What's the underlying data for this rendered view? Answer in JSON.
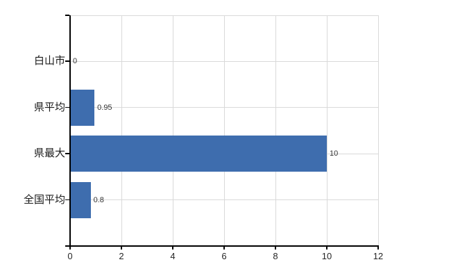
{
  "chart_data": {
    "type": "bar",
    "orientation": "horizontal",
    "title": "",
    "xlabel": "",
    "ylabel": "",
    "categories": [
      "白山市",
      "県平均",
      "県最大",
      "全国平均"
    ],
    "values": [
      0,
      0.95,
      10,
      0.8
    ],
    "value_labels": [
      "0",
      "0.95",
      "10",
      "0.8"
    ],
    "x_ticks": [
      0,
      2,
      4,
      6,
      8,
      10,
      12
    ],
    "x_tick_labels": [
      "0",
      "2",
      "4",
      "6",
      "8",
      "10",
      "12"
    ],
    "xlim": [
      0,
      12
    ],
    "grid": true,
    "legend": false,
    "colors": {
      "bar": "#3E6DAE",
      "grid": "#D9D9D9",
      "axis": "#000000",
      "category_text": "#1A1A1A",
      "value_text": "#333333",
      "tick_text": "#262626",
      "background": "#FFFFFF"
    }
  }
}
